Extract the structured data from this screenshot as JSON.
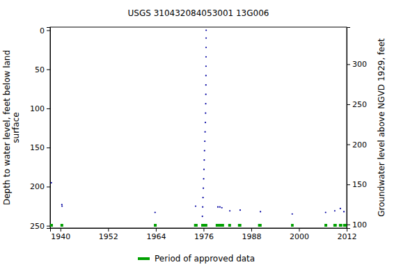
{
  "chart_data": {
    "type": "scatter",
    "title": "USGS 310432084053001 13G006",
    "ylabel": [
      "Depth to water level, feet below land",
      "surface"
    ],
    "y2label": "Groundwater level above NGVD 1929, feet",
    "x": [
      1937.7,
      1940.35,
      1940.4,
      1963.8,
      1974.0,
      1975.7,
      1975.78,
      1975.86,
      1975.94,
      1976.02,
      1976.1,
      1976.17,
      1976.24,
      1976.31,
      1976.38,
      1976.45,
      1976.5,
      1976.54,
      1976.57,
      1976.59,
      1976.6,
      1976.61,
      1976.62,
      1976.63,
      1976.64,
      1976.65,
      1979.6,
      1980.1,
      1980.6,
      1982.6,
      1985.2,
      1990.3,
      1998.3,
      2006.7,
      2009.0,
      2010.4,
      2011.3
    ],
    "values": [
      195,
      223,
      225,
      233,
      225,
      238,
      226,
      214,
      202,
      190,
      178,
      166,
      154,
      142,
      130,
      118,
      106,
      94,
      82,
      70,
      58,
      46,
      34,
      22,
      10,
      0,
      226,
      226,
      227,
      231,
      230,
      232,
      235,
      233,
      231,
      228,
      232
    ],
    "color": "#0000a0",
    "marker": "dot",
    "xlim": [
      1937.4,
      2012
    ],
    "xticks": [
      1940,
      1952,
      1964,
      1976,
      1988,
      2000,
      2012
    ],
    "ylim": [
      253,
      -4
    ],
    "yticks": [
      0,
      50,
      100,
      150,
      200,
      250
    ],
    "y2lim": [
      95.5,
      346.3
    ],
    "y2ticks": [
      100,
      150,
      200,
      250,
      300
    ],
    "grid": false,
    "legend": "bottom",
    "approved_periods": {
      "name": "Period of approved data",
      "color": "#00a000",
      "periods": [
        [
          1937.4,
          1938.1
        ],
        [
          1940.0,
          1940.7
        ],
        [
          1963.5,
          1964.2
        ],
        [
          1973.6,
          1974.5
        ],
        [
          1975.4,
          1976.95
        ],
        [
          1979.05,
          1981.15
        ],
        [
          1982.2,
          1982.9
        ],
        [
          1984.65,
          1985.5
        ],
        [
          1989.7,
          1990.6
        ],
        [
          1998.0,
          1998.65
        ],
        [
          2006.4,
          2007.1
        ],
        [
          2008.65,
          2009.5
        ],
        [
          2010.05,
          2010.9
        ],
        [
          2011.1,
          2012
        ]
      ]
    }
  }
}
